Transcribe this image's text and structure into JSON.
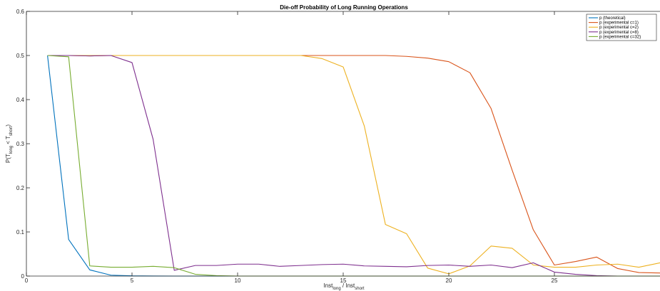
{
  "chart_data": {
    "type": "line",
    "title": "Die-off Probability of Long Running Operations",
    "xlabel": {
      "main": "Inst",
      "sub1": "long",
      "mid": " / Inst",
      "sub2": "short"
    },
    "ylabel": {
      "pre": "P(T",
      "sub1": "long",
      "mid": " < T",
      "sub2": "short",
      "post": ")"
    },
    "xlim": [
      0,
      30
    ],
    "ylim": [
      0,
      0.6
    ],
    "xticks": [
      0,
      5,
      10,
      15,
      20,
      25
    ],
    "xtick_labels": [
      "0",
      "5",
      "10",
      "15",
      "20",
      "25"
    ],
    "yticks": [
      0,
      0.1,
      0.2,
      0.3,
      0.4,
      0.5,
      0.6
    ],
    "ytick_labels": [
      "0",
      "0.1",
      "0.2",
      "0.3",
      "0.4",
      "0.5",
      "0.6"
    ],
    "grid": false,
    "legend_position": "top-right",
    "x": [
      1,
      2,
      3,
      4,
      5,
      6,
      7,
      8,
      9,
      10,
      11,
      12,
      13,
      14,
      15,
      16,
      17,
      18,
      19,
      20,
      21,
      22,
      23,
      24,
      25,
      26,
      27,
      28,
      29,
      30
    ],
    "series": [
      {
        "name": "p (theoretical)",
        "color": "#0072BD",
        "values": [
          0.5,
          0.083,
          0.014,
          0.002,
          0.0005,
          0.0001,
          0,
          0,
          0,
          0,
          0,
          0,
          0,
          0,
          0,
          0,
          0,
          0,
          0,
          0,
          0,
          0,
          0,
          0,
          0,
          0,
          0,
          0,
          0,
          0
        ]
      },
      {
        "name": "p (experimental c=1)",
        "color": "#D95319",
        "values": [
          0.5,
          0.5,
          0.499,
          0.5,
          0.5,
          0.5,
          0.5,
          0.5,
          0.5,
          0.5,
          0.5,
          0.5,
          0.5,
          0.5,
          0.5,
          0.5,
          0.5,
          0.498,
          0.494,
          0.486,
          0.461,
          0.38,
          0.24,
          0.105,
          0.025,
          0.033,
          0.043,
          0.017,
          0.008,
          0.007
        ]
      },
      {
        "name": "p (experimental c=2)",
        "color": "#EDB120",
        "values": [
          0.5,
          0.5,
          0.5,
          0.5,
          0.5,
          0.5,
          0.5,
          0.5,
          0.5,
          0.5,
          0.5,
          0.5,
          0.5,
          0.493,
          0.474,
          0.34,
          0.117,
          0.096,
          0.018,
          0.005,
          0.023,
          0.068,
          0.063,
          0.025,
          0.02,
          0.02,
          0.025,
          0.027,
          0.02,
          0.03
        ]
      },
      {
        "name": "p (experimental c=8)",
        "color": "#7E2F8E",
        "values": [
          0.5,
          0.5,
          0.499,
          0.5,
          0.484,
          0.31,
          0.013,
          0.024,
          0.024,
          0.027,
          0.027,
          0.022,
          0.024,
          0.026,
          0.027,
          0.023,
          0.022,
          0.021,
          0.024,
          0.025,
          0.022,
          0.025,
          0.019,
          0.03,
          0.009,
          0.004,
          0.001,
          0,
          0,
          0
        ]
      },
      {
        "name": "p (experimental c=32)",
        "color": "#77AC30",
        "values": [
          0.5,
          0.497,
          0.023,
          0.02,
          0.02,
          0.022,
          0.019,
          0.004,
          0.001,
          0,
          0,
          0,
          0,
          0,
          0,
          0,
          0,
          0,
          0,
          0,
          0,
          0,
          0,
          0,
          0,
          0,
          0,
          0,
          0,
          0
        ]
      }
    ]
  }
}
